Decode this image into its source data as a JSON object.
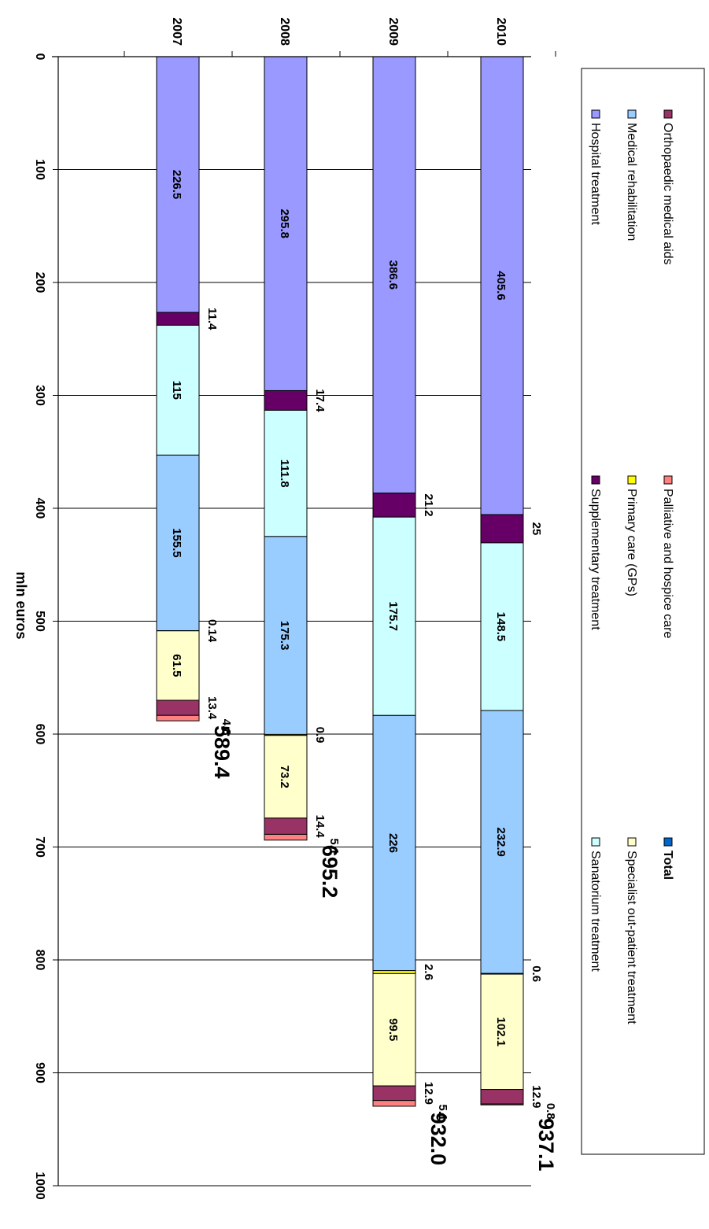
{
  "chart_data": {
    "type": "bar",
    "orientation": "horizontal-stacked",
    "categories": [
      "2007",
      "2008",
      "2009",
      "2010"
    ],
    "xlabel": "mln euros",
    "xlim": [
      0,
      1000
    ],
    "ticks": [
      "0",
      "100",
      "200",
      "300",
      "400",
      "500",
      "600",
      "700",
      "800",
      "900",
      "1000"
    ],
    "grid": true,
    "legend_position": "bottom",
    "series": [
      {
        "name": "Hospital treatment",
        "color": "#9999FF",
        "values": [
          226.5,
          295.8,
          386.6,
          405.6
        ],
        "labels": [
          "226.5",
          "295.8",
          "386.6",
          "405.6"
        ]
      },
      {
        "name": "Supplementary treatment",
        "color": "#660066",
        "values": [
          11.4,
          17.4,
          21.2,
          25
        ],
        "labels": [
          "11.4",
          "17.4",
          "21.2",
          "25"
        ]
      },
      {
        "name": "Sanatorium treatment",
        "color": "#CCFFFF",
        "values": [
          115,
          111.8,
          175.7,
          148.5
        ],
        "labels": [
          "115",
          "111.8",
          "175.7",
          "148.5"
        ]
      },
      {
        "name": "Medical rehabilitation",
        "color": "#99CCFF",
        "values": [
          155.5,
          175.3,
          226,
          232.9
        ],
        "labels": [
          "155.5",
          "175.3",
          "226",
          "232.9"
        ]
      },
      {
        "name": "Primary care (GPs)",
        "color": "#FFFF00",
        "values": [
          0.14,
          0.9,
          2.6,
          0.6
        ],
        "labels": [
          "0.14",
          "0.9",
          "2.6",
          "0.6"
        ]
      },
      {
        "name": "Specialist out-patient treatment",
        "color": "#FFFFCC",
        "values": [
          61.5,
          73.2,
          99.5,
          102.1
        ],
        "labels": [
          "61.5",
          "73.2",
          "99.5",
          "102.1"
        ]
      },
      {
        "name": "Orthopaedic medical aids",
        "color": "#993366",
        "values": [
          13.4,
          14.4,
          12.9,
          12.9
        ],
        "labels": [
          "13.4",
          "14.4",
          "12.9",
          "12.9"
        ]
      },
      {
        "name": "Palliative and hospice care",
        "color": "#FF8080",
        "values": [
          4.8,
          5.1,
          5.1,
          0.8
        ],
        "labels": [
          "4.8",
          "5.1",
          "5.1",
          "0.8"
        ]
      },
      {
        "name": "Total",
        "color": "#0066CC",
        "values": [
          589.4,
          695.2,
          932.0,
          937.1
        ],
        "labels": [
          "589.4",
          "695.2",
          "932.0",
          "937.1"
        ]
      }
    ]
  }
}
